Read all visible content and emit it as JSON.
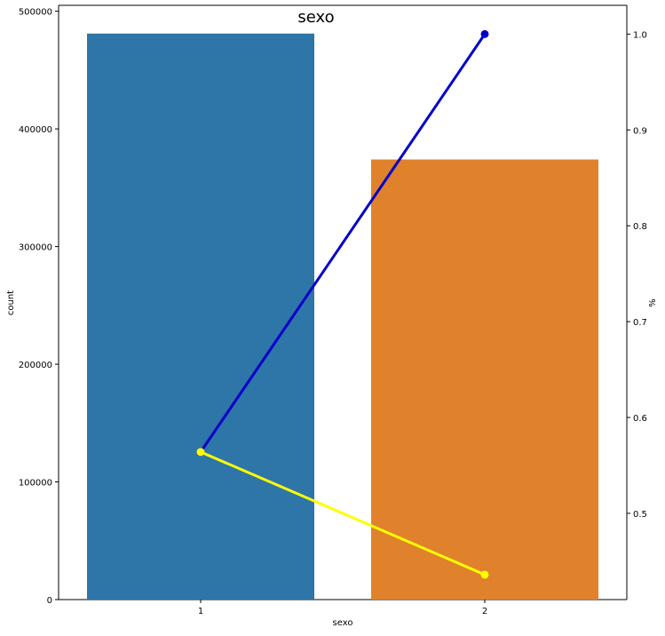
{
  "chart_data": {
    "type": "bar",
    "title": "sexo",
    "xlabel": "sexo",
    "ylabel": "count",
    "y2label": "%",
    "categories": [
      "1",
      "2"
    ],
    "bars": {
      "name": "count",
      "values": [
        481000,
        374000
      ],
      "colors": [
        "#2e75a8",
        "#e0812c"
      ]
    },
    "line_series": [
      {
        "color": "#0000cc",
        "values": [
          0.564,
          1.0
        ]
      },
      {
        "color": "#ffff00",
        "values": [
          0.564,
          0.436
        ]
      }
    ],
    "ylim": [
      0,
      505000
    ],
    "y2lim": [
      0.41,
      1.03
    ],
    "yticks": [
      0,
      100000,
      200000,
      300000,
      400000,
      500000
    ],
    "y2ticks": [
      0.5,
      0.6,
      0.7,
      0.8,
      0.9,
      1.0
    ],
    "grid": false,
    "legend": "none"
  }
}
